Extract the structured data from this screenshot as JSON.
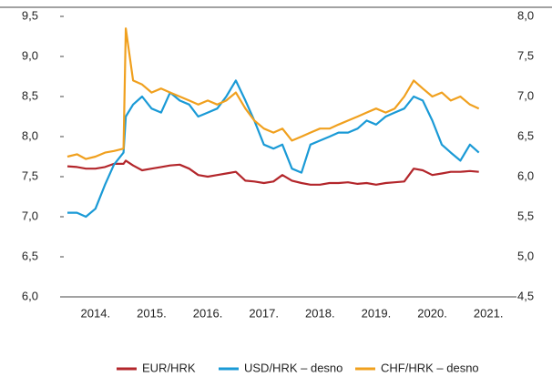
{
  "chart_data": {
    "type": "line",
    "x": [
      2014.0,
      2014.17,
      2014.33,
      2014.5,
      2014.67,
      2014.83,
      2015.0,
      2015.04,
      2015.17,
      2015.33,
      2015.5,
      2015.67,
      2015.83,
      2016.0,
      2016.17,
      2016.33,
      2016.5,
      2016.67,
      2016.83,
      2017.0,
      2017.17,
      2017.33,
      2017.5,
      2017.67,
      2017.83,
      2018.0,
      2018.17,
      2018.33,
      2018.5,
      2018.67,
      2018.83,
      2019.0,
      2019.17,
      2019.33,
      2019.5,
      2019.67,
      2019.83,
      2020.0,
      2020.17,
      2020.33,
      2020.5,
      2020.67,
      2020.83,
      2021.0,
      2021.17,
      2021.33
    ],
    "series": [
      {
        "name": "EUR/HRK",
        "color": "#b3262b",
        "values": [
          7.63,
          7.62,
          7.6,
          7.6,
          7.62,
          7.66,
          7.66,
          7.7,
          7.64,
          7.58,
          7.6,
          7.62,
          7.64,
          7.65,
          7.6,
          7.52,
          7.5,
          7.52,
          7.54,
          7.56,
          7.45,
          7.44,
          7.42,
          7.44,
          7.52,
          7.45,
          7.42,
          7.4,
          7.4,
          7.42,
          7.42,
          7.43,
          7.41,
          7.42,
          7.4,
          7.42,
          7.43,
          7.44,
          7.6,
          7.58,
          7.52,
          7.54,
          7.56,
          7.56,
          7.57,
          7.56
        ]
      },
      {
        "name": "USD/HRK – desno",
        "color": "#1a9ad6",
        "axis": "y2",
        "values": [
          5.55,
          5.55,
          5.5,
          5.6,
          5.9,
          6.15,
          6.3,
          6.75,
          6.9,
          7.0,
          6.85,
          6.8,
          7.05,
          6.95,
          6.9,
          6.75,
          6.8,
          6.85,
          7.0,
          7.2,
          6.95,
          6.7,
          6.4,
          6.35,
          6.4,
          6.1,
          6.05,
          6.4,
          6.45,
          6.5,
          6.55,
          6.55,
          6.6,
          6.7,
          6.65,
          6.75,
          6.8,
          6.85,
          7.0,
          6.95,
          6.7,
          6.4,
          6.3,
          6.2,
          6.4,
          6.3
        ]
      },
      {
        "name": "CHF/HRK – desno",
        "color": "#f0a01e",
        "axis": "y2",
        "values": [
          6.25,
          6.28,
          6.22,
          6.25,
          6.3,
          6.32,
          6.35,
          7.85,
          7.2,
          7.15,
          7.05,
          7.1,
          7.05,
          7.0,
          6.95,
          6.9,
          6.95,
          6.9,
          6.95,
          7.05,
          6.85,
          6.7,
          6.6,
          6.55,
          6.6,
          6.45,
          6.5,
          6.55,
          6.6,
          6.6,
          6.65,
          6.7,
          6.75,
          6.8,
          6.85,
          6.8,
          6.85,
          7.0,
          7.2,
          7.1,
          7.0,
          7.05,
          6.95,
          7.0,
          6.9,
          6.85
        ]
      }
    ],
    "xlim": [
      2014,
      2022
    ],
    "xticks": [
      {
        "value": 2014.5,
        "label": "2014."
      },
      {
        "value": 2015.5,
        "label": "2015."
      },
      {
        "value": 2016.5,
        "label": "2016."
      },
      {
        "value": 2017.5,
        "label": "2017."
      },
      {
        "value": 2018.5,
        "label": "2018."
      },
      {
        "value": 2019.5,
        "label": "2019."
      },
      {
        "value": 2020.5,
        "label": "2020."
      },
      {
        "value": 2021.5,
        "label": "2021."
      }
    ],
    "ylim": [
      6.0,
      9.5
    ],
    "yticks": [
      {
        "value": 6.0,
        "label": "6,0"
      },
      {
        "value": 6.5,
        "label": "6,5"
      },
      {
        "value": 7.0,
        "label": "7,0"
      },
      {
        "value": 7.5,
        "label": "7,5"
      },
      {
        "value": 8.0,
        "label": "8,0"
      },
      {
        "value": 8.5,
        "label": "8,5"
      },
      {
        "value": 9.0,
        "label": "9,0"
      },
      {
        "value": 9.5,
        "label": "9,5"
      }
    ],
    "y2lim": [
      4.5,
      8.0
    ],
    "y2ticks": [
      {
        "value": 4.5,
        "label": "4,5"
      },
      {
        "value": 5.0,
        "label": "5,0"
      },
      {
        "value": 5.5,
        "label": "5,5"
      },
      {
        "value": 6.0,
        "label": "6,0"
      },
      {
        "value": 6.5,
        "label": "6,5"
      },
      {
        "value": 7.0,
        "label": "7,0"
      },
      {
        "value": 7.5,
        "label": "7,5"
      },
      {
        "value": 8.0,
        "label": "8,0"
      }
    ],
    "legend": "bottom"
  }
}
